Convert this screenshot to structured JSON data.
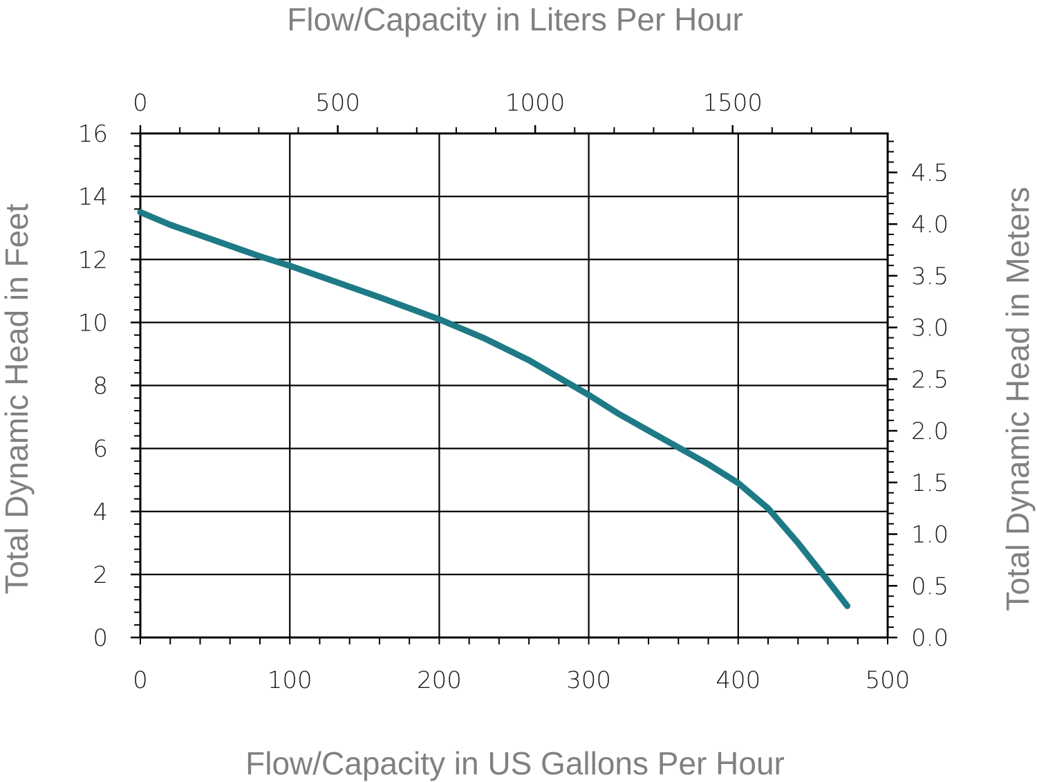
{
  "chart_data": {
    "type": "line",
    "title_top": "Flow/Capacity in Liters Per Hour",
    "xlabel": "Flow/Capacity in US Gallons Per Hour",
    "ylabel": "Total Dynamic Head in Feet",
    "ylabel_right": "Total Dynamic Head in Meters",
    "xlim": [
      0,
      500
    ],
    "ylim": [
      0,
      16
    ],
    "x2lim_liters": [
      0,
      1892.7
    ],
    "y2lim_meters": [
      0,
      4.877
    ],
    "x_ticks": [
      "0",
      "100",
      "200",
      "300",
      "400",
      "500"
    ],
    "y_ticks": [
      "0",
      "2",
      "4",
      "6",
      "8",
      "10",
      "12",
      "14",
      "16"
    ],
    "x2_ticks": [
      "0",
      "500",
      "1000",
      "1500"
    ],
    "y2_ticks": [
      "0.0",
      "0.5",
      "1.0",
      "1.5",
      "2.0",
      "2.5",
      "3.0",
      "3.5",
      "4.0",
      "4.5"
    ],
    "grid": true,
    "series": [
      {
        "color": "#1d7a86",
        "x": [
          0,
          20,
          50,
          80,
          100,
          130,
          160,
          200,
          230,
          260,
          300,
          320,
          350,
          380,
          400,
          420,
          440,
          460,
          473
        ],
        "y": [
          13.5,
          13.1,
          12.6,
          12.1,
          11.8,
          11.3,
          10.8,
          10.1,
          9.5,
          8.8,
          7.7,
          7.1,
          6.3,
          5.5,
          4.9,
          4.1,
          3.0,
          1.8,
          1.0
        ]
      }
    ]
  }
}
